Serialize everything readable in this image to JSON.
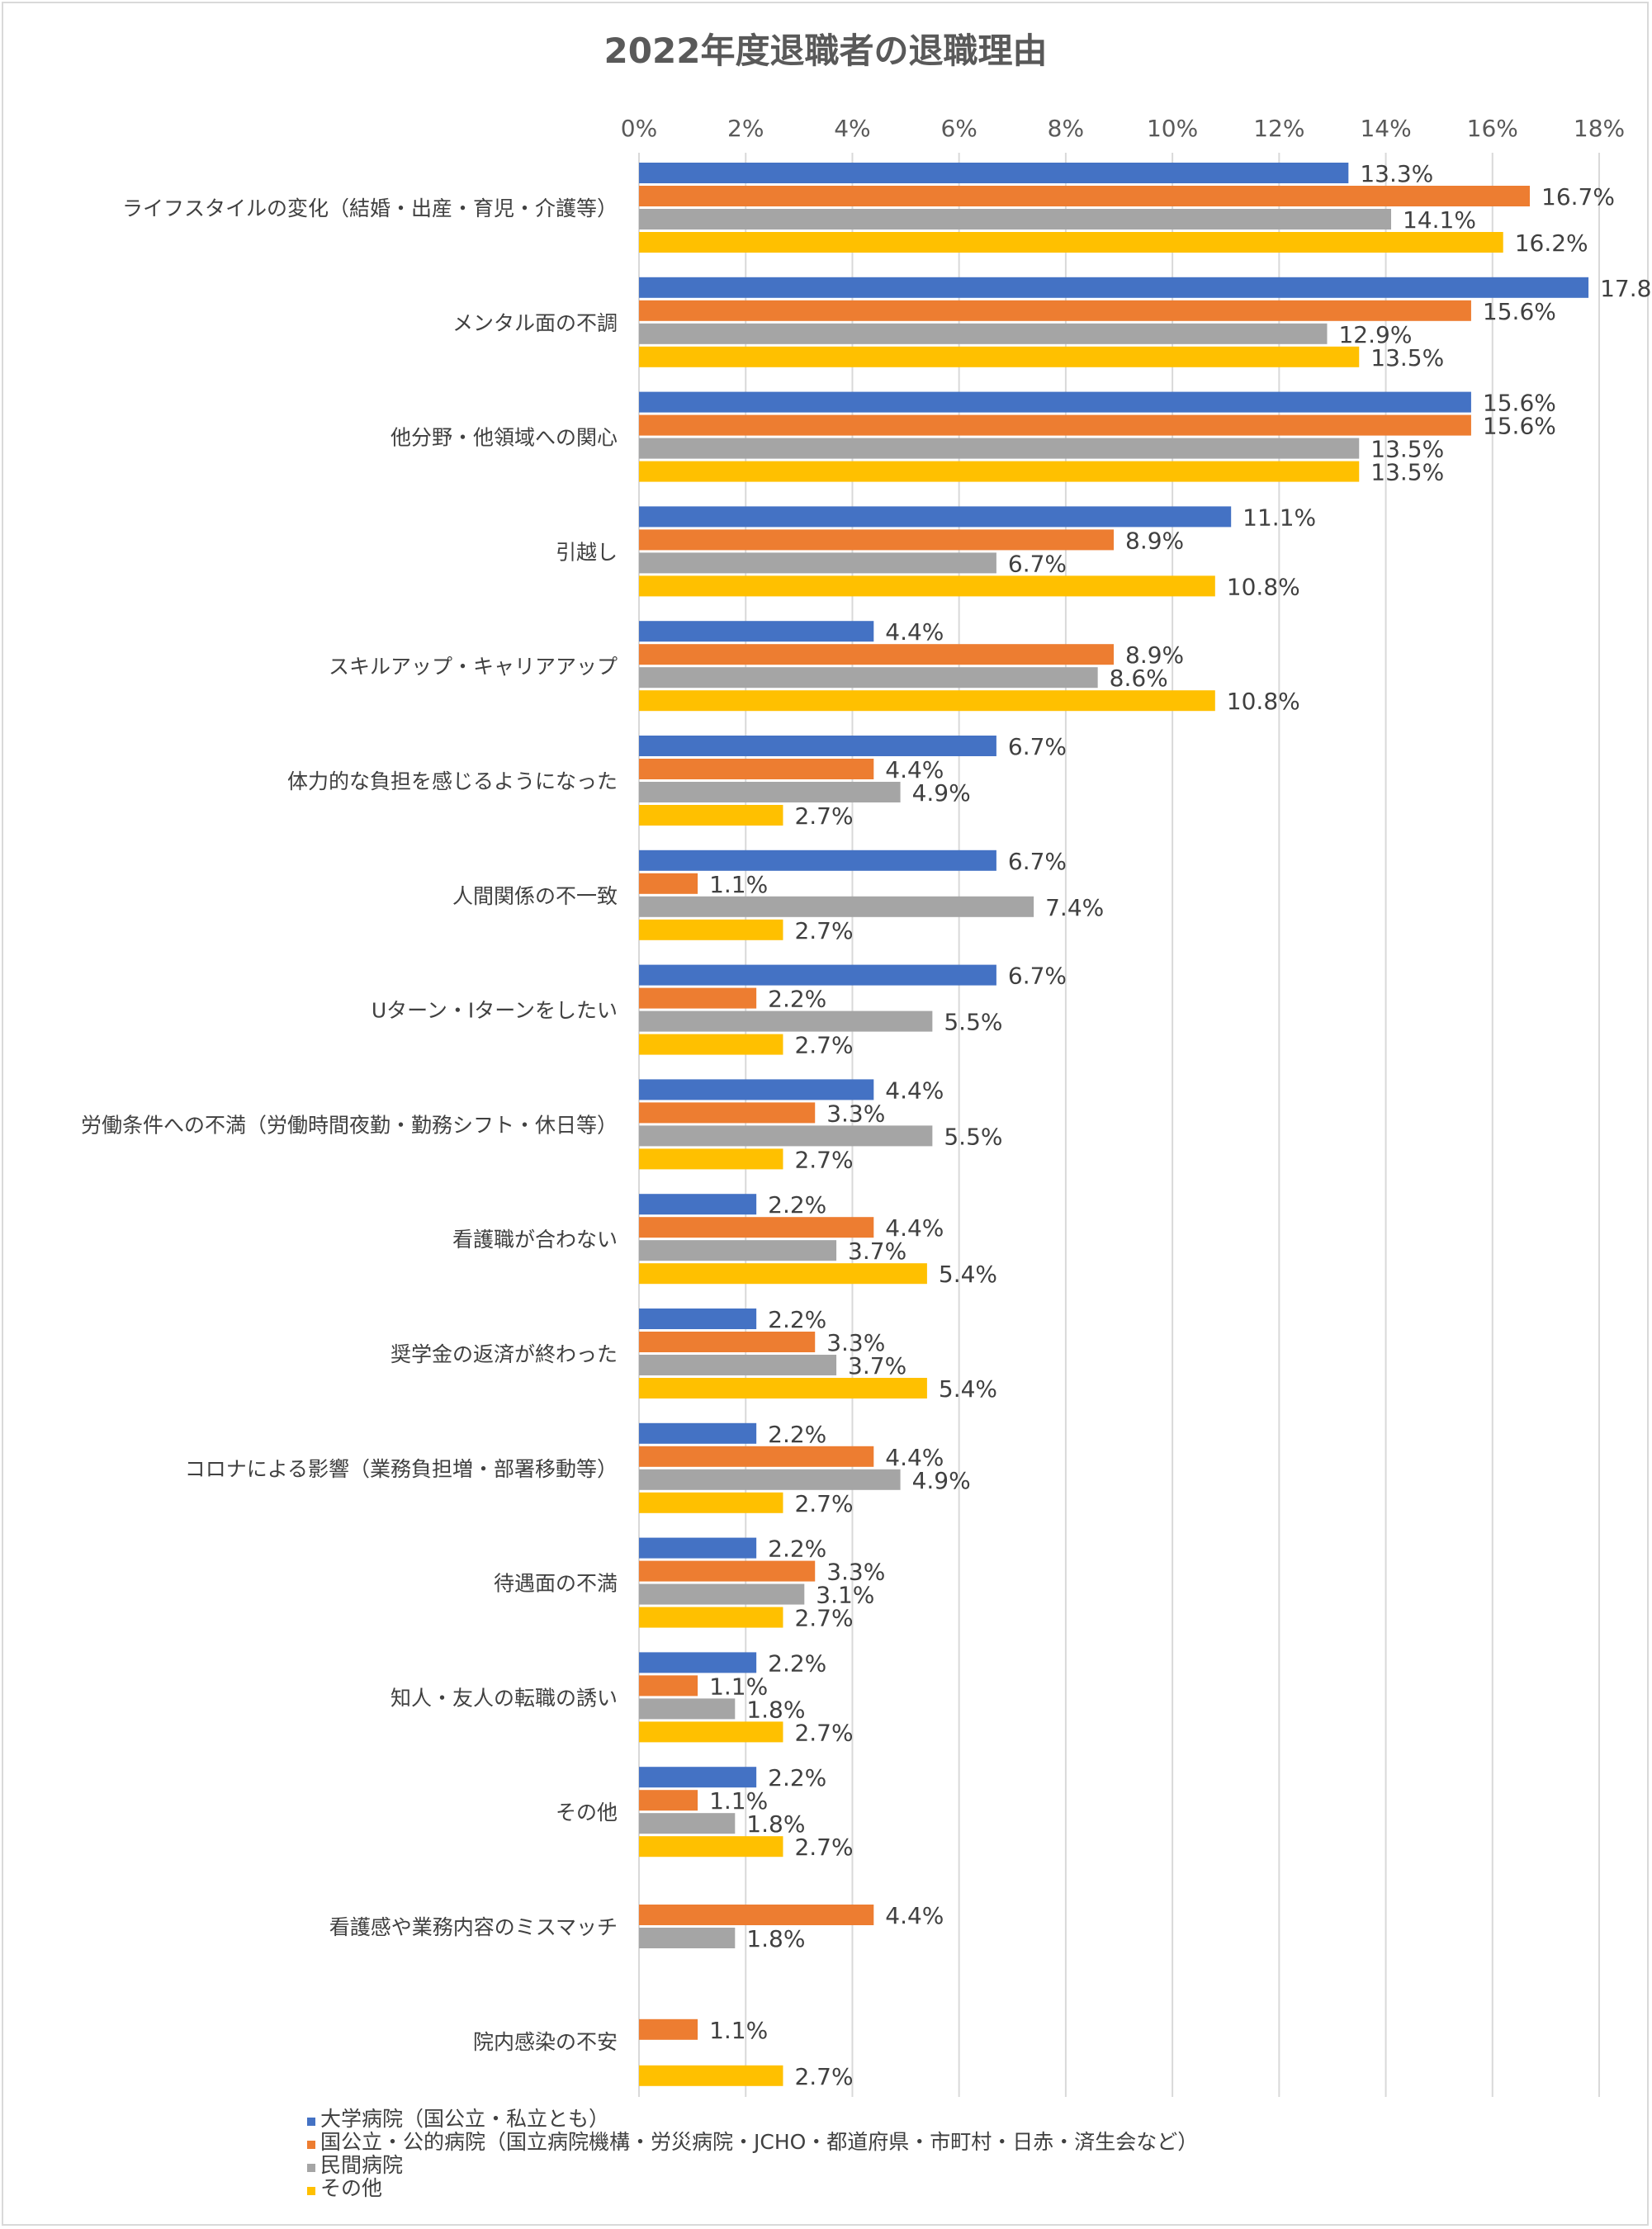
{
  "chart_data": {
    "type": "bar",
    "orientation": "horizontal",
    "title": "2022年度退職者の退職理由",
    "categories": [
      "ライフスタイルの変化（結婚・出産・育児・介護等）",
      "メンタル面の不調",
      "他分野・他領域への関心",
      "引越し",
      "スキルアップ・キャリアアップ",
      "体力的な負担を感じるようになった",
      "人間関係の不一致",
      "Uターン・Iターンをしたい",
      "労働条件への不満（労働時間夜勤・勤務シフト・休日等）",
      "看護職が合わない",
      "奨学金の返済が終わった",
      "コロナによる影響（業務負担増・部署移動等）",
      "待遇面の不満",
      "知人・友人の転職の誘い",
      "その他",
      "看護感や業務内容のミスマッチ",
      "院内感染の不安"
    ],
    "series": [
      {
        "name": "大学病院（国公立・私立とも）",
        "color": "#4472C4",
        "values": [
          13.3,
          17.8,
          15.6,
          11.1,
          4.4,
          6.7,
          6.7,
          6.7,
          4.4,
          2.2,
          2.2,
          2.2,
          2.2,
          2.2,
          2.2,
          null,
          null
        ]
      },
      {
        "name": "国公立・公的病院（国立病院機構・労災病院・JCHO・都道府県・市町村・日赤・済生会など）",
        "color": "#ED7D31",
        "values": [
          16.7,
          15.6,
          15.6,
          8.9,
          8.9,
          4.4,
          1.1,
          2.2,
          3.3,
          4.4,
          3.3,
          4.4,
          3.3,
          1.1,
          1.1,
          4.4,
          1.1
        ]
      },
      {
        "name": "民間病院",
        "color": "#A5A5A5",
        "values": [
          14.1,
          12.9,
          13.5,
          6.7,
          8.6,
          4.9,
          7.4,
          5.5,
          5.5,
          3.7,
          3.7,
          4.9,
          3.1,
          1.8,
          1.8,
          1.8,
          null
        ]
      },
      {
        "name": "その他",
        "color": "#FFC000",
        "values": [
          16.2,
          13.5,
          13.5,
          10.8,
          10.8,
          2.7,
          2.7,
          2.7,
          2.7,
          5.4,
          5.4,
          2.7,
          2.7,
          2.7,
          2.7,
          null,
          2.7
        ]
      }
    ],
    "xlim": [
      0,
      18
    ],
    "xticks": [
      "0%",
      "2%",
      "4%",
      "6%",
      "8%",
      "10%",
      "12%",
      "14%",
      "16%",
      "18%"
    ],
    "value_suffix": "%",
    "grid": true,
    "legend_position": "bottom-left"
  }
}
